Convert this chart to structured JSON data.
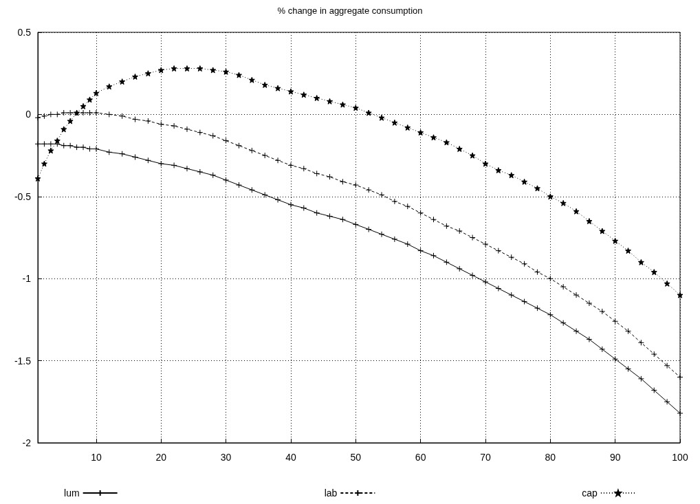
{
  "chart_data": {
    "type": "line",
    "title": "% change in aggregate consumption",
    "x": [
      1,
      2,
      3,
      4,
      5,
      6,
      7,
      8,
      9,
      10,
      12,
      14,
      16,
      18,
      20,
      22,
      24,
      26,
      28,
      30,
      32,
      34,
      36,
      38,
      40,
      42,
      44,
      46,
      48,
      50,
      52,
      54,
      56,
      58,
      60,
      62,
      64,
      66,
      68,
      70,
      72,
      74,
      76,
      78,
      80,
      82,
      84,
      86,
      88,
      90,
      92,
      94,
      96,
      98,
      100
    ],
    "series": [
      {
        "name": "lum",
        "color": "#000000",
        "marker": "cross",
        "line_style": "solid",
        "values": [
          -0.18,
          -0.18,
          -0.18,
          -0.18,
          -0.19,
          -0.19,
          -0.2,
          -0.2,
          -0.21,
          -0.21,
          -0.23,
          -0.24,
          -0.26,
          -0.28,
          -0.3,
          -0.31,
          -0.33,
          -0.35,
          -0.37,
          -0.4,
          -0.43,
          -0.46,
          -0.49,
          -0.52,
          -0.55,
          -0.57,
          -0.6,
          -0.62,
          -0.64,
          -0.67,
          -0.7,
          -0.73,
          -0.76,
          -0.79,
          -0.83,
          -0.86,
          -0.9,
          -0.94,
          -0.98,
          -1.02,
          -1.06,
          -1.1,
          -1.14,
          -1.18,
          -1.22,
          -1.27,
          -1.32,
          -1.37,
          -1.43,
          -1.49,
          -1.55,
          -1.61,
          -1.68,
          -1.75,
          -1.82
        ]
      },
      {
        "name": "lab",
        "color": "#000000",
        "marker": "cross",
        "line_style": "dashed",
        "values": [
          -0.02,
          -0.01,
          0,
          0,
          0.01,
          0.01,
          0.01,
          0.01,
          0.01,
          0.01,
          0,
          -0.01,
          -0.03,
          -0.04,
          -0.06,
          -0.07,
          -0.09,
          -0.11,
          -0.13,
          -0.16,
          -0.19,
          -0.22,
          -0.25,
          -0.28,
          -0.31,
          -0.33,
          -0.36,
          -0.38,
          -0.41,
          -0.43,
          -0.46,
          -0.49,
          -0.53,
          -0.56,
          -0.6,
          -0.64,
          -0.68,
          -0.71,
          -0.75,
          -0.79,
          -0.83,
          -0.87,
          -0.91,
          -0.96,
          -1.0,
          -1.05,
          -1.1,
          -1.15,
          -1.2,
          -1.26,
          -1.32,
          -1.39,
          -1.46,
          -1.53,
          -1.6
        ]
      },
      {
        "name": "cap",
        "color": "#000000",
        "marker": "star",
        "line_style": "dotted",
        "values": [
          -0.39,
          -0.3,
          -0.22,
          -0.16,
          -0.09,
          -0.04,
          0.01,
          0.05,
          0.09,
          0.13,
          0.17,
          0.2,
          0.23,
          0.25,
          0.27,
          0.28,
          0.28,
          0.28,
          0.27,
          0.26,
          0.24,
          0.21,
          0.18,
          0.16,
          0.14,
          0.12,
          0.1,
          0.08,
          0.06,
          0.04,
          0.01,
          -0.02,
          -0.05,
          -0.08,
          -0.11,
          -0.14,
          -0.17,
          -0.21,
          -0.25,
          -0.3,
          -0.34,
          -0.37,
          -0.41,
          -0.45,
          -0.5,
          -0.54,
          -0.59,
          -0.65,
          -0.71,
          -0.77,
          -0.83,
          -0.9,
          -0.96,
          -1.03,
          -1.1
        ]
      }
    ],
    "xlim": [
      1,
      100
    ],
    "xticks": [
      10,
      20,
      30,
      40,
      50,
      60,
      70,
      80,
      90,
      100
    ],
    "ylim": [
      -2,
      0.5
    ],
    "yticks": [
      -2,
      -1.5,
      -1,
      -0.5,
      0,
      0.5
    ],
    "grid": true,
    "legend": "bottom"
  }
}
